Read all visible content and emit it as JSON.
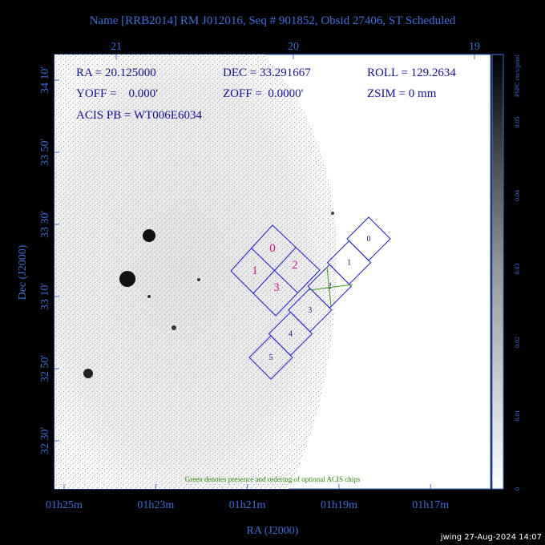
{
  "title": "Name [RRB2014] RM J012016, Seq # 901852, Obsid 27406, ST Scheduled",
  "info": [
    "RA = 20.125000",
    "DEC = 33.291667",
    "ROLL = 129.2634",
    "YOFF =    0.000'",
    "ZOFF =  0.0000'",
    "ZSIM = 0 mm",
    "ACIS PB = WT006E6034"
  ],
  "acis_i_chips": [
    "0",
    "1",
    "2",
    "3"
  ],
  "acis_s_chips": [
    "0",
    "1",
    "2",
    "3",
    "4",
    "5"
  ],
  "note": "Green denotes presence and ordering of optional ACIS chips",
  "axes": {
    "x_label": "RA (J2000)",
    "y_label": "Dec (J2000)",
    "x_ticks_top": [
      "21",
      "20",
      "19"
    ],
    "x_ticks_bottom": [
      "01h25m",
      "01h23m",
      "01h21m",
      "01h19m",
      "01h17m"
    ],
    "y_ticks": [
      "34 10'",
      "33 50'",
      "33 30'",
      "33 10'",
      "32 50'",
      "32 30'"
    ]
  },
  "colorbar": {
    "label": "PSPC cts/s/pixel",
    "ticks": [
      "0",
      "0.01",
      "0.02",
      "0.03",
      "0.04",
      "0.05"
    ]
  },
  "footer": "jwing 27-Aug-2024 14:07"
}
